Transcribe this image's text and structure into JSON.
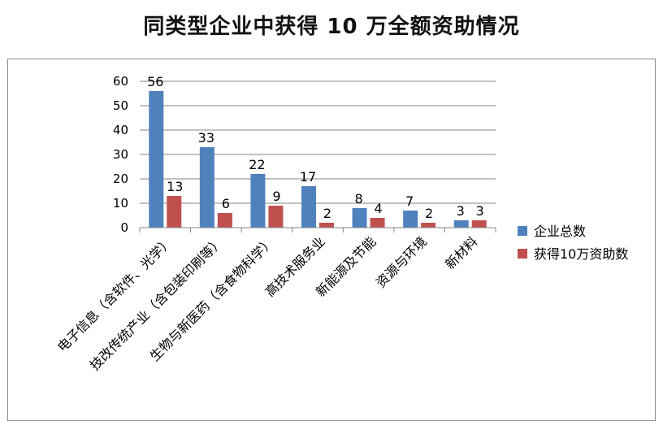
{
  "chart_data": {
    "type": "bar",
    "title": "同类型企业中获得 10 万全额资助情况",
    "categories": [
      "电子信息（含软件、光学）",
      "技改传统产业（含包装印刷等）",
      "生物与新医药（含食物科学）",
      "高技术服务业",
      "新能源及节能",
      "资源与环境",
      "新材料"
    ],
    "series": [
      {
        "name": "企业总数",
        "values": [
          56,
          33,
          22,
          17,
          8,
          7,
          3
        ],
        "color": "#4f81bd"
      },
      {
        "name": "获得10万资助数",
        "values": [
          13,
          6,
          9,
          2,
          4,
          2,
          3
        ],
        "color": "#c0504d"
      }
    ],
    "ylim": [
      0,
      60
    ],
    "yticks": [
      0,
      10,
      20,
      30,
      40,
      50,
      60
    ],
    "grid": true,
    "legend": "right"
  }
}
